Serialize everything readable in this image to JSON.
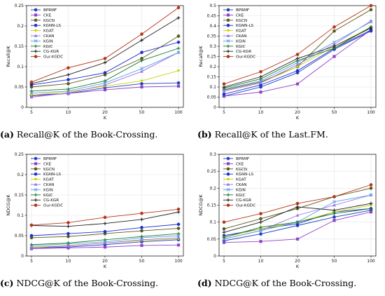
{
  "chart_data": [
    {
      "type": "line",
      "caption_label": "(a)",
      "caption_text": "Recall@K of the Book-Crossing.",
      "xlabel": "K",
      "ylabel": "Recall@K",
      "x": [
        "5",
        "10",
        "20",
        "50",
        "100"
      ],
      "ylim": [
        0,
        0.25
      ],
      "yticks": [
        "0",
        "0.05",
        "0.1",
        "0.15",
        "0.2",
        "0.25"
      ],
      "legend_position": "top-left",
      "series": [
        {
          "name": "BPRMF",
          "color": "#1f3fbf",
          "marker": "circle",
          "values": [
            0.03,
            0.034,
            0.048,
            0.058,
            0.06
          ]
        },
        {
          "name": "CKE",
          "color": "#8e44c9",
          "marker": "square",
          "values": [
            0.028,
            0.034,
            0.043,
            0.05,
            0.052
          ]
        },
        {
          "name": "KGCN",
          "color": "#5a5a1a",
          "marker": "circle",
          "values": [
            0.05,
            0.058,
            0.08,
            0.12,
            0.175
          ]
        },
        {
          "name": "KGNN-LS",
          "color": "#1b2fd6",
          "marker": "circle",
          "values": [
            0.055,
            0.068,
            0.085,
            0.135,
            0.16
          ]
        },
        {
          "name": "KGAT",
          "color": "#c8d400",
          "marker": "triangle-down",
          "values": [
            0.03,
            0.038,
            0.052,
            0.065,
            0.09
          ]
        },
        {
          "name": "CKAN",
          "color": "#9b6ee8",
          "marker": "triangle-up",
          "values": [
            0.025,
            0.035,
            0.055,
            0.088,
            0.135
          ]
        },
        {
          "name": "KGIN",
          "color": "#5ba3e0",
          "marker": "x",
          "values": [
            0.035,
            0.04,
            0.06,
            0.095,
            0.135
          ]
        },
        {
          "name": "KGIC",
          "color": "#1e7a30",
          "marker": "plus",
          "values": [
            0.04,
            0.045,
            0.065,
            0.115,
            0.145
          ]
        },
        {
          "name": "CG-KGR",
          "color": "#222222",
          "marker": "plus",
          "values": [
            0.058,
            0.08,
            0.11,
            0.165,
            0.22
          ]
        },
        {
          "name": "Our-KGDC",
          "color": "#b5361a",
          "marker": "circle",
          "values": [
            0.062,
            0.097,
            0.12,
            0.18,
            0.245
          ]
        }
      ]
    },
    {
      "type": "line",
      "caption_label": "(b)",
      "caption_text": "Recall@K of the Last.FM.",
      "xlabel": "K",
      "ylabel": "Recall@K",
      "x": [
        "5",
        "10",
        "20",
        "50",
        "100"
      ],
      "ylim": [
        0,
        0.5
      ],
      "yticks": [
        "0",
        "0.05",
        "0.1",
        "0.15",
        "0.2",
        "0.25",
        "0.3",
        "0.35",
        "0.4",
        "0.45",
        "0.5"
      ],
      "legend_position": "top-left",
      "series": [
        {
          "name": "BPRMF",
          "color": "#1f3fbf",
          "marker": "circle",
          "values": [
            0.055,
            0.1,
            0.17,
            0.285,
            0.375
          ]
        },
        {
          "name": "CKE",
          "color": "#8e44c9",
          "marker": "square",
          "values": [
            0.055,
            0.075,
            0.115,
            0.25,
            0.38
          ]
        },
        {
          "name": "KGCN",
          "color": "#5a5a1a",
          "marker": "circle",
          "values": [
            0.085,
            0.125,
            0.2,
            0.375,
            0.48
          ]
        },
        {
          "name": "KGNN-LS",
          "color": "#1b2fd6",
          "marker": "circle",
          "values": [
            0.065,
            0.11,
            0.18,
            0.29,
            0.38
          ]
        },
        {
          "name": "KGAT",
          "color": "#c8d400",
          "marker": "triangle-down",
          "values": [
            0.08,
            0.12,
            0.2,
            0.3,
            0.395
          ]
        },
        {
          "name": "CKAN",
          "color": "#9b6ee8",
          "marker": "triangle-up",
          "values": [
            0.08,
            0.12,
            0.21,
            0.31,
            0.425
          ]
        },
        {
          "name": "KGIN",
          "color": "#5ba3e0",
          "marker": "x",
          "values": [
            0.09,
            0.13,
            0.22,
            0.32,
            0.42
          ]
        },
        {
          "name": "KGIC",
          "color": "#1e7a30",
          "marker": "plus",
          "values": [
            0.095,
            0.14,
            0.23,
            0.29,
            0.395
          ]
        },
        {
          "name": "CG-KGR",
          "color": "#222222",
          "marker": "plus",
          "values": [
            0.1,
            0.15,
            0.24,
            0.3,
            0.39
          ]
        },
        {
          "name": "Our-KGDC",
          "color": "#b5361a",
          "marker": "circle",
          "values": [
            0.115,
            0.175,
            0.26,
            0.395,
            0.5
          ]
        }
      ]
    },
    {
      "type": "line",
      "caption_label": "(c)",
      "caption_text": "NDCG@K of the Book-Crossing.",
      "xlabel": "K",
      "ylabel": "NDCG@K",
      "x": [
        "5",
        "10",
        "20",
        "50",
        "100"
      ],
      "ylim": [
        0,
        0.25
      ],
      "yticks": [
        "0",
        "0.05",
        "0.1",
        "0.15",
        "0.2",
        "0.25"
      ],
      "legend_position": "top-left",
      "series": [
        {
          "name": "BPRMF",
          "color": "#1f3fbf",
          "marker": "circle",
          "values": [
            0.02,
            0.022,
            0.028,
            0.035,
            0.04
          ]
        },
        {
          "name": "CKE",
          "color": "#8e44c9",
          "marker": "square",
          "values": [
            0.018,
            0.02,
            0.022,
            0.026,
            0.027
          ]
        },
        {
          "name": "KGCN",
          "color": "#5a5a1a",
          "marker": "circle",
          "values": [
            0.045,
            0.048,
            0.055,
            0.062,
            0.068
          ]
        },
        {
          "name": "KGNN-LS",
          "color": "#1b2fd6",
          "marker": "circle",
          "values": [
            0.05,
            0.055,
            0.06,
            0.07,
            0.078
          ]
        },
        {
          "name": "KGAT",
          "color": "#c8d400",
          "marker": "triangle-down",
          "values": [
            0.022,
            0.026,
            0.032,
            0.038,
            0.042
          ]
        },
        {
          "name": "CKAN",
          "color": "#9b6ee8",
          "marker": "triangle-up",
          "values": [
            0.02,
            0.025,
            0.032,
            0.04,
            0.045
          ]
        },
        {
          "name": "KGIN",
          "color": "#5ba3e0",
          "marker": "x",
          "values": [
            0.025,
            0.03,
            0.035,
            0.045,
            0.05
          ]
        },
        {
          "name": "KGIC",
          "color": "#1e7a30",
          "marker": "plus",
          "values": [
            0.028,
            0.032,
            0.04,
            0.048,
            0.055
          ]
        },
        {
          "name": "CG-KGR",
          "color": "#222222",
          "marker": "plus",
          "values": [
            0.075,
            0.073,
            0.08,
            0.09,
            0.108
          ]
        },
        {
          "name": "Our-KGDC",
          "color": "#b5361a",
          "marker": "circle",
          "values": [
            0.076,
            0.082,
            0.095,
            0.105,
            0.115
          ]
        }
      ]
    },
    {
      "type": "line",
      "caption_label": "(d)",
      "caption_text": "NDCG@K of the Book-Crossing.",
      "xlabel": "K",
      "ylabel": "NDCG@K",
      "x": [
        "5",
        "10",
        "20",
        "50",
        "100"
      ],
      "ylim": [
        0,
        0.3
      ],
      "yticks": [
        "0",
        "0.05",
        "0.1",
        "0.15",
        "0.2",
        "0.25",
        "0.3"
      ],
      "legend_position": "top-left",
      "series": [
        {
          "name": "BPRMF",
          "color": "#1f3fbf",
          "marker": "circle",
          "values": [
            0.045,
            0.065,
            0.09,
            0.115,
            0.135
          ]
        },
        {
          "name": "CKE",
          "color": "#8e44c9",
          "marker": "square",
          "values": [
            0.04,
            0.043,
            0.05,
            0.105,
            0.13
          ]
        },
        {
          "name": "KGCN",
          "color": "#5a5a1a",
          "marker": "circle",
          "values": [
            0.08,
            0.11,
            0.14,
            0.175,
            0.2
          ]
        },
        {
          "name": "KGNN-LS",
          "color": "#1b2fd6",
          "marker": "circle",
          "values": [
            0.06,
            0.08,
            0.095,
            0.13,
            0.14
          ]
        },
        {
          "name": "KGAT",
          "color": "#c8d400",
          "marker": "triangle-down",
          "values": [
            0.055,
            0.08,
            0.1,
            0.13,
            0.15
          ]
        },
        {
          "name": "CKAN",
          "color": "#9b6ee8",
          "marker": "triangle-up",
          "values": [
            0.05,
            0.075,
            0.12,
            0.15,
            0.18
          ]
        },
        {
          "name": "KGIN",
          "color": "#5ba3e0",
          "marker": "x",
          "values": [
            0.05,
            0.075,
            0.1,
            0.16,
            0.18
          ]
        },
        {
          "name": "KGIC",
          "color": "#1e7a30",
          "marker": "plus",
          "values": [
            0.055,
            0.085,
            0.1,
            0.125,
            0.14
          ]
        },
        {
          "name": "CG-KGR",
          "color": "#222222",
          "marker": "plus",
          "values": [
            0.07,
            0.1,
            0.145,
            0.135,
            0.155
          ]
        },
        {
          "name": "Our-KGDC",
          "color": "#b5361a",
          "marker": "circle",
          "values": [
            0.1,
            0.125,
            0.155,
            0.175,
            0.21
          ]
        }
      ]
    }
  ]
}
